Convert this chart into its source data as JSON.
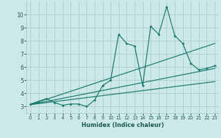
{
  "xlabel": "Humidex (Indice chaleur)",
  "bg_color": "#cce8e8",
  "grid_color": "#b0d0d0",
  "line_color": "#1a7a6e",
  "xlim": [
    -0.5,
    23.5
  ],
  "ylim": [
    2.5,
    11.0
  ],
  "xticks": [
    0,
    1,
    2,
    3,
    4,
    5,
    6,
    7,
    8,
    9,
    10,
    11,
    12,
    13,
    14,
    15,
    16,
    17,
    18,
    19,
    20,
    21,
    22,
    23
  ],
  "yticks": [
    3,
    4,
    5,
    6,
    7,
    8,
    9,
    10
  ],
  "main_x": [
    0,
    1,
    2,
    3,
    4,
    5,
    6,
    7,
    8,
    9,
    10,
    11,
    12,
    13,
    14,
    15,
    16,
    17,
    18,
    19,
    20,
    21,
    22,
    23
  ],
  "main_y": [
    3.2,
    3.4,
    3.6,
    3.3,
    3.1,
    3.2,
    3.2,
    3.0,
    3.5,
    4.6,
    5.0,
    8.5,
    7.8,
    7.6,
    4.6,
    9.1,
    8.5,
    10.6,
    8.4,
    7.8,
    6.3,
    5.8,
    5.9,
    6.1
  ],
  "line1_x": [
    0,
    23
  ],
  "line1_y": [
    3.15,
    4.9
  ],
  "line2_x": [
    0,
    23
  ],
  "line2_y": [
    3.15,
    5.9
  ],
  "line3_x": [
    0,
    23
  ],
  "line3_y": [
    3.15,
    7.8
  ]
}
